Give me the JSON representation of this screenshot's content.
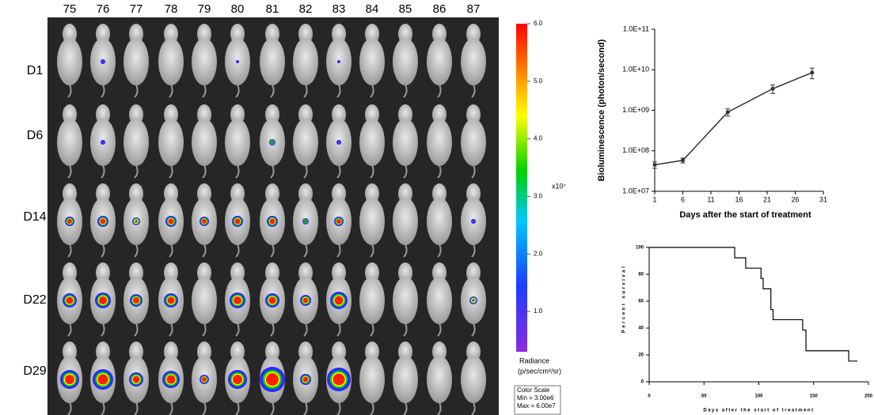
{
  "imaging": {
    "columns": [
      "75",
      "76",
      "77",
      "78",
      "79",
      "80",
      "81",
      "82",
      "83",
      "84",
      "85",
      "86",
      "87"
    ],
    "rows": [
      "D1",
      "D6",
      "D14",
      "D22",
      "D29"
    ],
    "colorbar": {
      "lim": [
        0.3,
        6.0
      ],
      "ticks": [
        {
          "value": 1,
          "label": "1.0"
        },
        {
          "value": 2,
          "label": "2.0"
        },
        {
          "value": 3,
          "label": "3.0"
        },
        {
          "value": 4,
          "label": "4.0"
        },
        {
          "value": 5,
          "label": "5.0"
        },
        {
          "value": 6,
          "label": "6.0"
        }
      ],
      "exponent": "x10⁷",
      "unit_title": "Radiance",
      "unit": "(p/sec/cm²/sr)",
      "scale_lines": [
        "Color Scale",
        "Min = 3.00e6",
        "Max = 6.00e7"
      ]
    }
  },
  "chart_data": [
    {
      "type": "line",
      "y_label": "Bioluminescence (photon/second)",
      "x_label": "Days after the start of treatment",
      "x": [
        1,
        6,
        14,
        22,
        29
      ],
      "series": [
        {
          "color": "#333333",
          "values": [
            45000000,
            58000000,
            900000000,
            3400000000,
            8500000000
          ],
          "errors": [
            8000000,
            8000000,
            180000000,
            800000000,
            2500000000
          ]
        }
      ],
      "xlim": [
        1,
        31
      ],
      "xticks": [
        1,
        6,
        11,
        16,
        21,
        26,
        31
      ],
      "ylim": [
        10000000,
        100000000000
      ],
      "log_y": true,
      "yticks": [
        {
          "value": 10000000,
          "label": "1.0E+07"
        },
        {
          "value": 100000000,
          "label": "1.0E+08"
        },
        {
          "value": 1000000000,
          "label": "1.0E+09"
        },
        {
          "value": 10000000000,
          "label": "1.0E+10"
        },
        {
          "value": 100000000000,
          "label": "1.0E+11"
        }
      ]
    },
    {
      "type": "step",
      "y_label": "Percent survival",
      "x_label": "Days after the start of treatment",
      "x": [
        0,
        78,
        88,
        102,
        104,
        111,
        113,
        140,
        143,
        182,
        190
      ],
      "values": [
        100,
        92.3,
        84.6,
        76.9,
        69.2,
        53.8,
        46.2,
        38.5,
        23.1,
        15.4,
        15.4
      ],
      "color": "#000000",
      "xlim": [
        0,
        200
      ],
      "xticks": [
        0,
        50,
        100,
        150,
        200
      ],
      "ylim": [
        0,
        100
      ],
      "yticks": [
        0,
        20,
        40,
        60,
        80,
        100
      ]
    }
  ]
}
